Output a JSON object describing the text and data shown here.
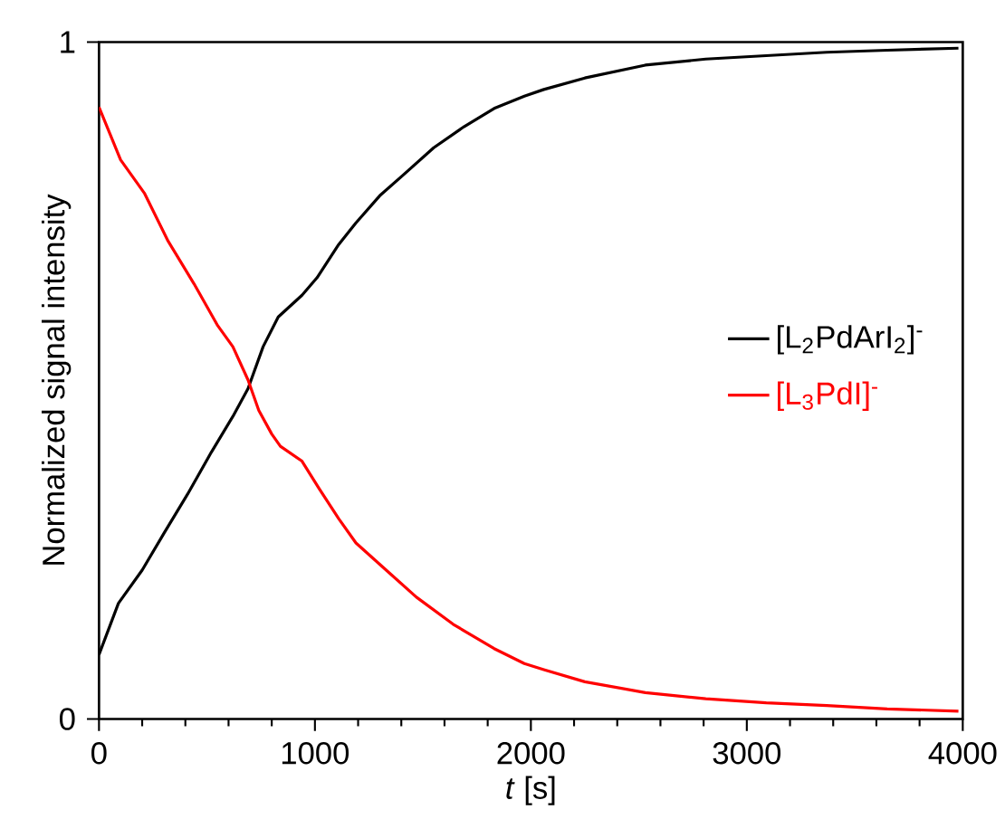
{
  "chart_data": {
    "type": "line",
    "xlabel": "*t* [s]",
    "ylabel": "Normalized signal intensity",
    "xlim": [
      0,
      4000
    ],
    "ylim": [
      0,
      1
    ],
    "xticks": [
      0,
      1000,
      2000,
      3000,
      4000
    ],
    "yticks": [
      0,
      1
    ],
    "legend": "right",
    "line_style": "solid",
    "series": [
      {
        "name": "[L$_{2}$PdArI$_{2}$]$^{-}$",
        "color": "#000000",
        "x": [
          0,
          90,
          200,
          300,
          410,
          520,
          620,
          690,
          760,
          830,
          940,
          1010,
          1110,
          1190,
          1300,
          1410,
          1550,
          1690,
          1830,
          1970,
          2060,
          2250,
          2530,
          2810,
          3090,
          3370,
          3650,
          3980
        ],
        "values": [
          0.095,
          0.171,
          0.22,
          0.274,
          0.332,
          0.394,
          0.447,
          0.488,
          0.55,
          0.594,
          0.626,
          0.652,
          0.701,
          0.733,
          0.773,
          0.804,
          0.844,
          0.875,
          0.902,
          0.92,
          0.93,
          0.947,
          0.966,
          0.975,
          0.98,
          0.985,
          0.988,
          0.991
        ]
      },
      {
        "name": "[L$_{3}$PdI]$^{-}$",
        "color": "#ff0000",
        "x": [
          0,
          100,
          210,
          320,
          440,
          550,
          620,
          690,
          740,
          800,
          840,
          940,
          1020,
          1110,
          1190,
          1330,
          1470,
          1640,
          1830,
          1970,
          2060,
          2250,
          2530,
          2810,
          3090,
          3370,
          3650,
          3980
        ],
        "values": [
          0.904,
          0.826,
          0.777,
          0.706,
          0.643,
          0.581,
          0.55,
          0.501,
          0.456,
          0.421,
          0.403,
          0.381,
          0.34,
          0.296,
          0.26,
          0.22,
          0.18,
          0.14,
          0.104,
          0.082,
          0.073,
          0.055,
          0.039,
          0.03,
          0.024,
          0.02,
          0.015,
          0.0115
        ]
      }
    ]
  }
}
